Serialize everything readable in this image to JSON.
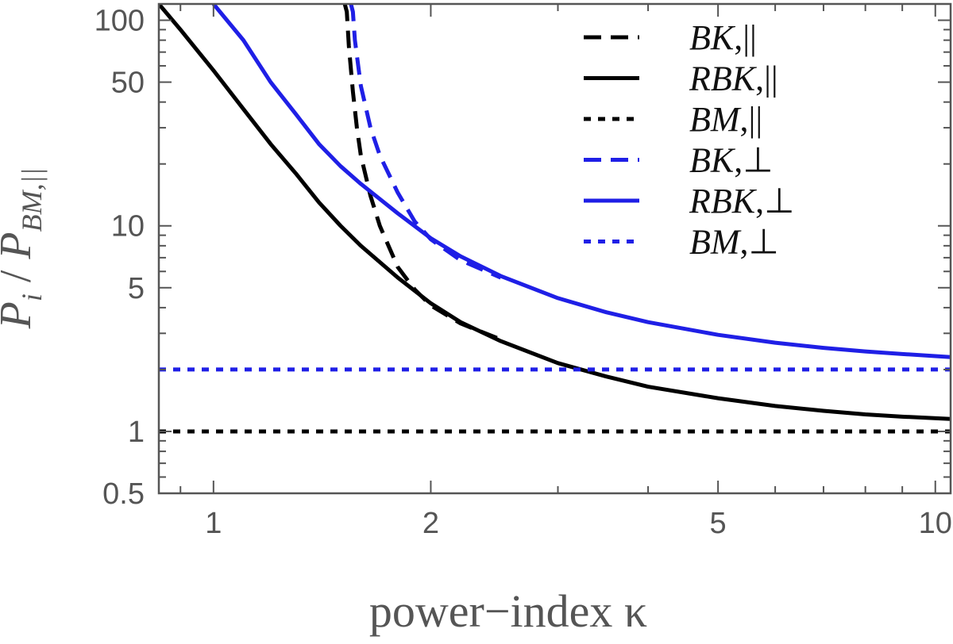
{
  "chart_data": {
    "type": "line",
    "x_scale": "log",
    "y_scale": "log",
    "xlim": [
      0.84,
      10.5
    ],
    "ylim": [
      0.5,
      120
    ],
    "xlabel": "power−index κ",
    "ylabel": "P_i / P_BM,||",
    "x_ticks": [
      {
        "value": 1,
        "label": "1"
      },
      {
        "value": 2,
        "label": "2"
      },
      {
        "value": 5,
        "label": "5"
      },
      {
        "value": 10,
        "label": "10"
      }
    ],
    "y_ticks": [
      {
        "value": 0.5,
        "label": "0.5"
      },
      {
        "value": 1,
        "label": "1"
      },
      {
        "value": 5,
        "label": "5"
      },
      {
        "value": 10,
        "label": "10"
      },
      {
        "value": 50,
        "label": "50"
      },
      {
        "value": 100,
        "label": "100"
      }
    ],
    "grid": false,
    "legend_position": "top-right",
    "colors": {
      "black": "#000000",
      "blue": "#1f1fe6",
      "axis": "#555555"
    },
    "series": [
      {
        "name": "BK,||",
        "color": "#000000",
        "dash": "dashed",
        "points": [
          [
            1.52,
            120
          ],
          [
            1.53,
            110
          ],
          [
            1.54,
            75
          ],
          [
            1.56,
            45
          ],
          [
            1.58,
            30
          ],
          [
            1.6,
            22
          ],
          [
            1.65,
            14
          ],
          [
            1.7,
            10
          ],
          [
            1.8,
            6.3
          ],
          [
            1.9,
            4.9
          ],
          [
            2.0,
            4.1
          ],
          [
            2.2,
            3.35
          ],
          [
            2.5,
            2.8
          ]
        ]
      },
      {
        "name": "RBK,||",
        "color": "#000000",
        "dash": "solid",
        "points": [
          [
            0.84,
            120
          ],
          [
            0.9,
            90
          ],
          [
            1.0,
            57
          ],
          [
            1.1,
            37
          ],
          [
            1.2,
            25
          ],
          [
            1.3,
            18
          ],
          [
            1.4,
            13
          ],
          [
            1.5,
            10
          ],
          [
            1.6,
            8
          ],
          [
            1.8,
            5.6
          ],
          [
            2.0,
            4.2
          ],
          [
            2.2,
            3.4
          ],
          [
            2.5,
            2.75
          ],
          [
            3.0,
            2.15
          ],
          [
            3.5,
            1.85
          ],
          [
            4.0,
            1.65
          ],
          [
            5.0,
            1.45
          ],
          [
            6.0,
            1.33
          ],
          [
            7.0,
            1.26
          ],
          [
            8.0,
            1.21
          ],
          [
            9.0,
            1.18
          ],
          [
            10.5,
            1.15
          ]
        ]
      },
      {
        "name": "BM,||",
        "color": "#000000",
        "dash": "dotted",
        "points": [
          [
            0.84,
            1
          ],
          [
            10.5,
            1
          ]
        ]
      },
      {
        "name": "BK,⊥",
        "color": "#1f1fe6",
        "dash": "dashed",
        "points": [
          [
            1.55,
            120
          ],
          [
            1.56,
            110
          ],
          [
            1.57,
            80
          ],
          [
            1.6,
            48
          ],
          [
            1.65,
            30
          ],
          [
            1.7,
            22
          ],
          [
            1.8,
            14.5
          ],
          [
            1.9,
            10.5
          ],
          [
            2.0,
            8.6
          ],
          [
            2.2,
            6.8
          ],
          [
            2.5,
            5.6
          ]
        ]
      },
      {
        "name": "RBK,⊥",
        "color": "#1f1fe6",
        "dash": "solid",
        "points": [
          [
            1.0,
            120
          ],
          [
            1.1,
            80
          ],
          [
            1.2,
            50
          ],
          [
            1.3,
            35
          ],
          [
            1.4,
            25
          ],
          [
            1.5,
            19.5
          ],
          [
            1.6,
            16
          ],
          [
            1.8,
            11.5
          ],
          [
            2.0,
            8.7
          ],
          [
            2.2,
            7.1
          ],
          [
            2.5,
            5.7
          ],
          [
            3.0,
            4.45
          ],
          [
            3.5,
            3.8
          ],
          [
            4.0,
            3.4
          ],
          [
            5.0,
            2.95
          ],
          [
            6.0,
            2.7
          ],
          [
            7.0,
            2.55
          ],
          [
            8.0,
            2.45
          ],
          [
            9.0,
            2.38
          ],
          [
            10.5,
            2.3
          ]
        ]
      },
      {
        "name": "BM,⊥",
        "color": "#1f1fe6",
        "dash": "dotted",
        "points": [
          [
            0.84,
            2
          ],
          [
            10.5,
            2
          ]
        ]
      }
    ]
  }
}
